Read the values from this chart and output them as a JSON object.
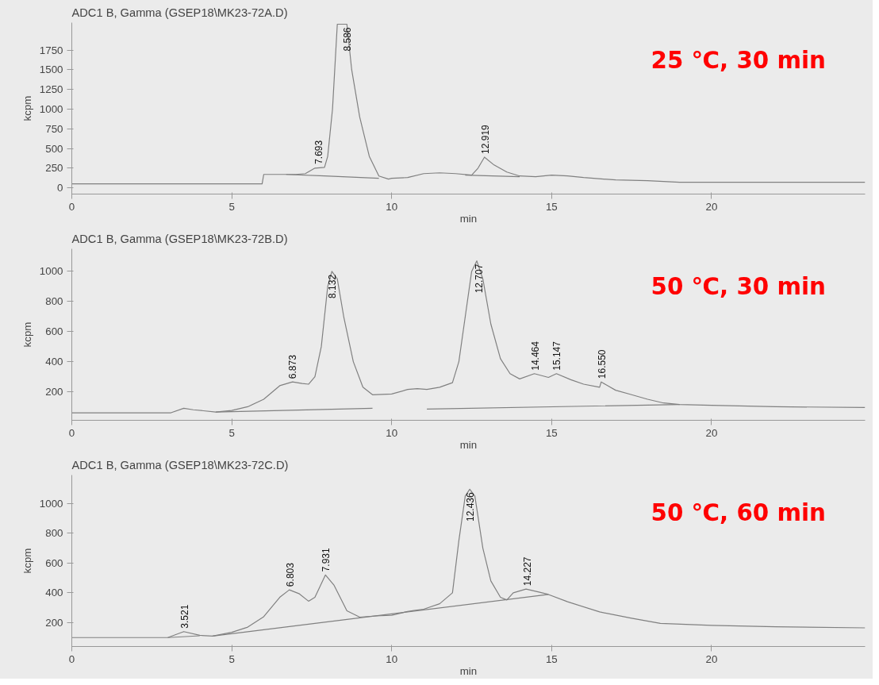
{
  "chart_data": [
    {
      "type": "line",
      "title": "ADC1 B, Gamma (GSEP18\\MK23-72A.D)",
      "xlabel": "min",
      "ylabel": "kcpm",
      "xlim": [
        0,
        24.8
      ],
      "ylim": [
        -80,
        2100
      ],
      "xticks": [
        0,
        5,
        10,
        15,
        20
      ],
      "yticks": [
        0,
        250,
        500,
        750,
        1000,
        1250,
        1500,
        1750
      ],
      "grid": false,
      "series": [
        {
          "color": "#808080",
          "x": [
            0,
            5.95,
            6.0,
            7.0,
            7.3,
            7.6,
            7.9,
            8.0,
            8.15,
            8.3,
            8.6,
            8.75,
            9.0,
            9.3,
            9.6,
            9.9,
            10.0,
            10.5,
            11.0,
            11.5,
            12.0,
            12.5,
            12.7,
            12.9,
            13.2,
            13.6,
            14.0,
            14.5,
            15.0,
            15.5,
            16.0,
            17.0,
            18.0,
            19.0,
            20.0,
            24.8
          ],
          "values": [
            50,
            50,
            170,
            170,
            180,
            250,
            260,
            400,
            1000,
            2080,
            2080,
            1500,
            900,
            400,
            150,
            110,
            120,
            130,
            180,
            190,
            180,
            160,
            250,
            390,
            290,
            200,
            150,
            140,
            160,
            150,
            130,
            100,
            90,
            70,
            70,
            70
          ]
        },
        {
          "color": "#808080",
          "x": [
            6.7,
            7.9,
            9.6,
            9.7,
            12.3,
            14.0
          ],
          "values": [
            170,
            150,
            120,
            null,
            160,
            140
          ]
        }
      ],
      "annotations": [
        {
          "text": "7.693",
          "x": 7.693,
          "y": 260
        },
        {
          "text": "8.586",
          "x": 8.586,
          "y": 2080
        },
        {
          "text": "12.919",
          "x": 12.919,
          "y": 390
        },
        "25 ℃, 30 min"
      ]
    },
    {
      "type": "line",
      "title": "ADC1 B, Gamma (GSEP18\\MK23-72B.D)",
      "xlabel": "min",
      "ylabel": "kcpm",
      "xlim": [
        0,
        24.8
      ],
      "ylim": [
        10,
        1150
      ],
      "xticks": [
        0,
        5,
        10,
        15,
        20
      ],
      "yticks": [
        200,
        400,
        600,
        800,
        1000
      ],
      "grid": false,
      "series": [
        {
          "color": "#808080",
          "x": [
            0,
            3.1,
            3.5,
            3.8,
            4.5,
            5.0,
            5.5,
            6.0,
            6.5,
            6.9,
            7.2,
            7.4,
            7.6,
            7.8,
            8.0,
            8.13,
            8.3,
            8.5,
            8.8,
            9.1,
            9.4,
            10.0,
            10.5,
            10.8,
            11.1,
            11.5,
            11.9,
            12.1,
            12.3,
            12.5,
            12.66,
            12.85,
            13.1,
            13.4,
            13.7,
            14.0,
            14.46,
            14.9,
            15.15,
            15.6,
            16.0,
            16.5,
            16.55,
            17.0,
            17.5,
            18.0,
            18.5,
            19.0,
            20.0,
            22.0,
            24.8
          ],
          "values": [
            60,
            60,
            90,
            80,
            65,
            75,
            100,
            150,
            240,
            265,
            255,
            250,
            300,
            500,
            900,
            1000,
            950,
            700,
            400,
            230,
            180,
            185,
            215,
            220,
            215,
            230,
            260,
            400,
            700,
            1000,
            1070,
            950,
            650,
            420,
            320,
            285,
            320,
            295,
            320,
            280,
            250,
            230,
            265,
            210,
            180,
            150,
            125,
            115,
            110,
            100,
            95
          ]
        },
        {
          "color": "#808080",
          "x": [
            4.5,
            9.4,
            9.5,
            11.1,
            19.0
          ],
          "values": [
            65,
            90,
            null,
            85,
            115
          ]
        }
      ],
      "annotations": [
        {
          "text": "6.873",
          "x": 6.873,
          "y": 265
        },
        {
          "text": "8.132",
          "x": 8.132,
          "y": 1000
        },
        {
          "text": "12.707",
          "x": 12.707,
          "y": 1070
        },
        {
          "text": "14.464",
          "x": 14.464,
          "y": 320
        },
        {
          "text": "15.147",
          "x": 15.147,
          "y": 320
        },
        {
          "text": "16.550",
          "x": 16.55,
          "y": 265
        },
        "50 ℃, 30 min"
      ]
    },
    {
      "type": "line",
      "title": "ADC1 B, Gamma (GSEP18\\MK23-72C.D)",
      "xlabel": "min",
      "ylabel": "kcpm",
      "xlim": [
        0,
        24.8
      ],
      "ylim": [
        40,
        1190
      ],
      "xticks": [
        0,
        5,
        10,
        15,
        20
      ],
      "yticks": [
        200,
        400,
        600,
        800,
        1000
      ],
      "grid": false,
      "series": [
        {
          "color": "#808080",
          "x": [
            0,
            3.0,
            3.5,
            4.0,
            4.4,
            5.0,
            5.5,
            6.0,
            6.5,
            6.8,
            7.1,
            7.4,
            7.6,
            7.93,
            8.2,
            8.6,
            9.0,
            9.5,
            10.0,
            10.5,
            10.7,
            11.0,
            11.5,
            11.9,
            12.1,
            12.3,
            12.44,
            12.6,
            12.85,
            13.1,
            13.4,
            13.6,
            13.8,
            14.2,
            14.6,
            14.9,
            15.5,
            16.5,
            17.5,
            18.4,
            20.0,
            22.0,
            24.8
          ],
          "values": [
            100,
            100,
            140,
            115,
            110,
            135,
            170,
            240,
            370,
            420,
            395,
            344,
            370,
            520,
            450,
            280,
            237,
            245,
            250,
            275,
            282,
            290,
            327,
            400,
            750,
            1050,
            1095,
            1050,
            700,
            480,
            370,
            352,
            400,
            425,
            405,
            389,
            340,
            272,
            230,
            195,
            182,
            172,
            165
          ]
        },
        {
          "color": "#808080",
          "x": [
            3.0,
            4.0,
            4.2,
            4.4,
            14.9
          ],
          "values": [
            100,
            112,
            null,
            110,
            389
          ]
        }
      ],
      "annotations": [
        {
          "text": "3.521",
          "x": 3.521,
          "y": 140
        },
        {
          "text": "6.803",
          "x": 6.803,
          "y": 420
        },
        {
          "text": "7.931",
          "x": 7.931,
          "y": 520
        },
        {
          "text": "12.436",
          "x": 12.436,
          "y": 1095
        },
        {
          "text": "14.227",
          "x": 14.227,
          "y": 425
        },
        "50 ℃, 60 min"
      ]
    }
  ]
}
